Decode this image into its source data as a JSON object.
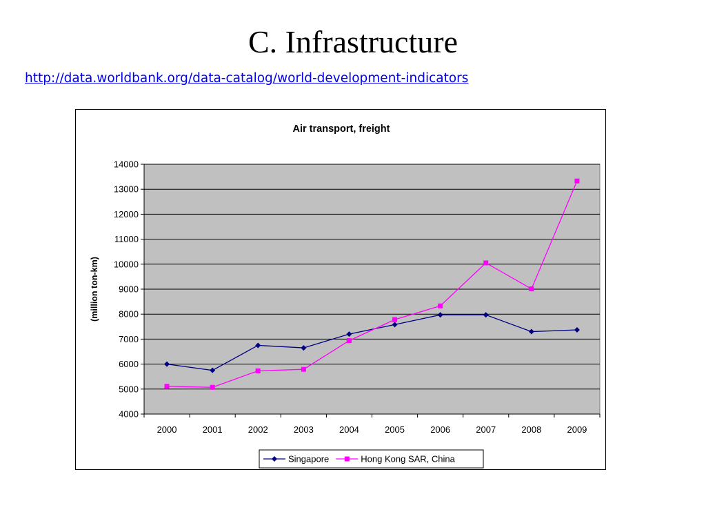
{
  "slide": {
    "title": "C. Infrastructure",
    "link": "http://data.worldbank.org/data-catalog/world-development-indicators"
  },
  "colors": {
    "plot_background": "#c0c0c0",
    "gridline": "#000000",
    "singapore": "#000080",
    "hong_kong": "#ff00ff"
  },
  "chart_data": {
    "type": "line",
    "title": "Air transport, freight",
    "xlabel": "",
    "ylabel": "(million ton-km)",
    "categories": [
      "2000",
      "2001",
      "2002",
      "2003",
      "2004",
      "2005",
      "2006",
      "2007",
      "2008",
      "2009"
    ],
    "ylim": [
      4000,
      14000
    ],
    "yticks": [
      4000,
      5000,
      6000,
      7000,
      8000,
      9000,
      10000,
      11000,
      12000,
      13000,
      14000
    ],
    "grid": true,
    "legend_position": "bottom",
    "series": [
      {
        "name": "Singapore",
        "marker": "diamond",
        "color": "#000080",
        "values": [
          6000,
          5750,
          6750,
          6650,
          7200,
          7580,
          7970,
          7970,
          7300,
          7370
        ]
      },
      {
        "name": "Hong Kong SAR, China",
        "marker": "square",
        "color": "#ff00ff",
        "values": [
          5110,
          5070,
          5730,
          5790,
          6940,
          7780,
          8330,
          10050,
          9010,
          13330
        ]
      }
    ]
  }
}
